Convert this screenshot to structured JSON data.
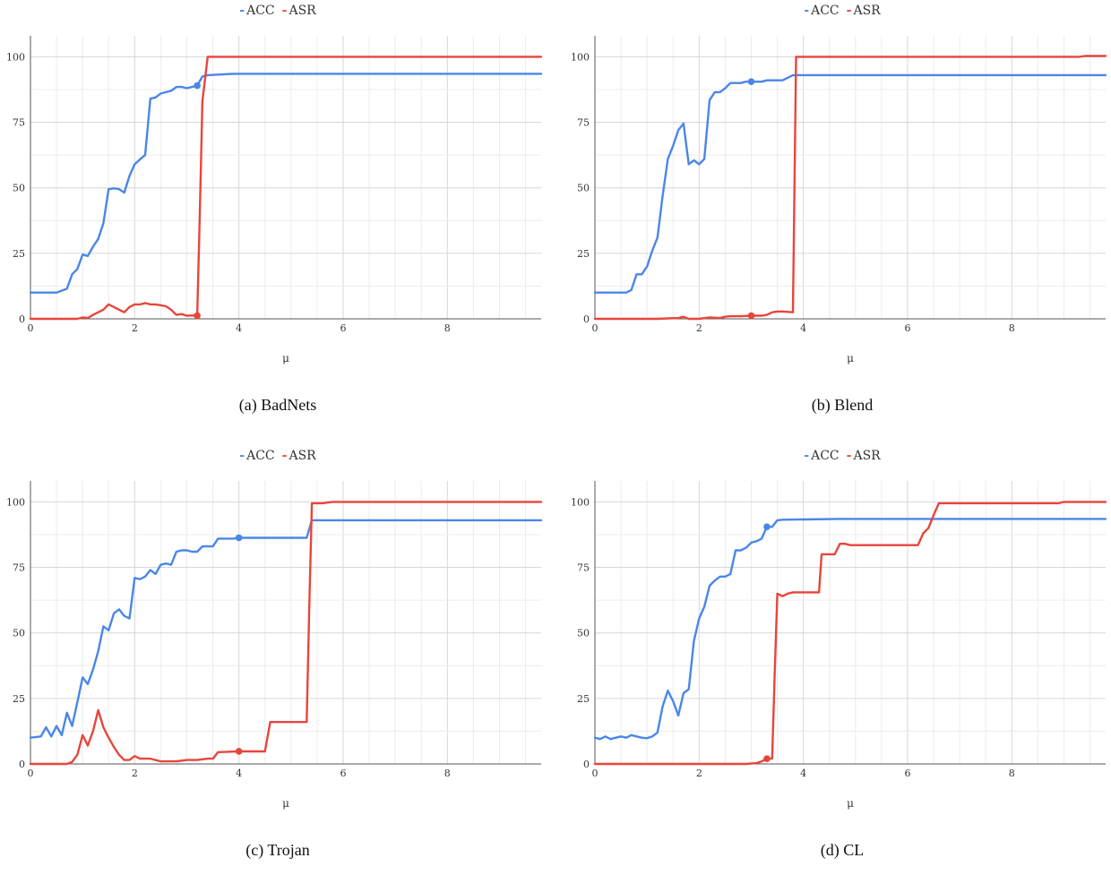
{
  "chart_data": [
    {
      "type": "line",
      "caption": "(a) BadNets",
      "xlabel": "μ",
      "ylabel": "",
      "xlim": [
        0,
        9.8
      ],
      "ylim": [
        0,
        108
      ],
      "xticks": [
        0,
        2,
        4,
        6,
        8
      ],
      "xtick_labels": [
        "0",
        "2",
        "4",
        "6",
        "8"
      ],
      "yticks": [
        0,
        25,
        50,
        75,
        100
      ],
      "ytick_labels": [
        "0",
        "25",
        "50",
        "75",
        "100"
      ],
      "legend": "top-center",
      "grid": true,
      "series": [
        {
          "name": "ACC",
          "color": "#4a86e8",
          "marker": [
            3.2,
            89
          ],
          "x": [
            0,
            0.5,
            0.7,
            0.8,
            0.9,
            1.0,
            1.1,
            1.2,
            1.3,
            1.4,
            1.5,
            1.6,
            1.7,
            1.8,
            1.9,
            2.0,
            2.1,
            2.2,
            2.3,
            2.4,
            2.5,
            2.6,
            2.7,
            2.8,
            2.9,
            3.0,
            3.1,
            3.2,
            3.3,
            3.4,
            3.9,
            9.8
          ],
          "y": [
            10,
            10,
            11.5,
            17,
            19,
            24.5,
            24,
            27.5,
            30.5,
            36.5,
            49.5,
            49.8,
            49.5,
            48.2,
            54.5,
            59,
            60.8,
            62.5,
            84,
            84.5,
            86,
            86.5,
            87,
            88.5,
            88.5,
            88,
            88.5,
            89,
            92.5,
            93,
            93.5,
            93.5
          ]
        },
        {
          "name": "ASR",
          "color": "#e8453c",
          "marker": [
            3.2,
            1.2
          ],
          "x": [
            0,
            0.8,
            0.9,
            1.0,
            1.1,
            1.2,
            1.3,
            1.4,
            1.5,
            1.6,
            1.7,
            1.8,
            1.9,
            2.0,
            2.1,
            2.2,
            2.3,
            2.4,
            2.5,
            2.6,
            2.7,
            2.8,
            2.9,
            3.0,
            3.1,
            3.2,
            3.25,
            3.3,
            3.4,
            3.5,
            9.8
          ],
          "y": [
            0,
            0,
            0,
            0.5,
            0.3,
            1.5,
            2.5,
            3.5,
            5.5,
            4.5,
            3.5,
            2.5,
            4.5,
            5.5,
            5.5,
            6,
            5.5,
            5.5,
            5.2,
            4.8,
            3.5,
            1.5,
            1.8,
            1.2,
            1.3,
            1.2,
            40,
            83,
            100,
            100,
            100
          ]
        }
      ]
    },
    {
      "type": "line",
      "caption": "(b) Blend",
      "xlabel": "μ",
      "ylabel": "",
      "xlim": [
        0,
        9.8
      ],
      "ylim": [
        0,
        108
      ],
      "xticks": [
        0,
        2,
        4,
        6,
        8
      ],
      "xtick_labels": [
        "0",
        "2",
        "4",
        "6",
        "8"
      ],
      "yticks": [
        0,
        25,
        50,
        75,
        100
      ],
      "ytick_labels": [
        "0",
        "25",
        "50",
        "75",
        "100"
      ],
      "legend": "top-center",
      "grid": true,
      "series": [
        {
          "name": "ACC",
          "color": "#4a86e8",
          "marker": [
            3.0,
            90.5
          ],
          "x": [
            0,
            0.6,
            0.7,
            0.8,
            0.9,
            1.0,
            1.1,
            1.2,
            1.3,
            1.4,
            1.5,
            1.6,
            1.7,
            1.8,
            1.9,
            2.0,
            2.1,
            2.2,
            2.3,
            2.4,
            2.5,
            2.6,
            2.7,
            2.8,
            2.9,
            3.0,
            3.1,
            3.2,
            3.3,
            3.4,
            3.5,
            3.6,
            3.7,
            3.8,
            3.9,
            9.8
          ],
          "y": [
            10,
            10,
            11,
            17,
            17,
            20,
            26,
            31,
            47,
            61,
            66,
            72,
            74.5,
            59,
            60.5,
            59,
            61,
            83.5,
            86.5,
            86.5,
            88,
            90,
            90,
            90,
            90.5,
            90.5,
            90.5,
            90.5,
            91,
            91,
            91,
            91,
            92,
            93,
            93,
            93
          ]
        },
        {
          "name": "ASR",
          "color": "#e8453c",
          "marker": [
            3.0,
            1.2
          ],
          "x": [
            0,
            1.2,
            1.6,
            1.7,
            1.8,
            2.0,
            2.2,
            2.4,
            2.5,
            2.6,
            2.8,
            3.0,
            3.2,
            3.3,
            3.4,
            3.5,
            3.6,
            3.8,
            3.86,
            3.9,
            9.3,
            9.4,
            9.8
          ],
          "y": [
            0,
            0,
            0.3,
            0.8,
            0,
            0,
            0.5,
            0.3,
            0.8,
            1,
            1,
            1.2,
            1.2,
            1.5,
            2.5,
            2.8,
            2.8,
            2.5,
            100,
            100,
            100,
            100.3,
            100.3
          ]
        }
      ]
    },
    {
      "type": "line",
      "caption": "(c) Trojan",
      "xlabel": "μ",
      "ylabel": "",
      "xlim": [
        0,
        9.8
      ],
      "ylim": [
        0,
        108
      ],
      "xticks": [
        0,
        2,
        4,
        6,
        8
      ],
      "xtick_labels": [
        "0",
        "2",
        "4",
        "6",
        "8"
      ],
      "yticks": [
        0,
        25,
        50,
        75,
        100
      ],
      "ytick_labels": [
        "0",
        "25",
        "50",
        "75",
        "100"
      ],
      "legend": "top-center",
      "grid": true,
      "series": [
        {
          "name": "ACC",
          "color": "#4a86e8",
          "marker": [
            4.0,
            86.3
          ],
          "x": [
            0,
            0.2,
            0.3,
            0.4,
            0.5,
            0.6,
            0.7,
            0.8,
            0.9,
            1.0,
            1.1,
            1.2,
            1.3,
            1.4,
            1.5,
            1.6,
            1.7,
            1.8,
            1.9,
            2.0,
            2.1,
            2.2,
            2.3,
            2.4,
            2.5,
            2.6,
            2.7,
            2.8,
            2.9,
            3.0,
            3.1,
            3.2,
            3.3,
            3.4,
            3.5,
            3.6,
            3.7,
            3.8,
            3.9,
            4.0,
            4.5,
            5.0,
            5.3,
            5.4,
            5.5,
            9.8
          ],
          "y": [
            10,
            10.5,
            14,
            10.5,
            14.5,
            11,
            19.5,
            14.5,
            23.5,
            33,
            30.5,
            36,
            43,
            52.5,
            51,
            57.5,
            59,
            56.5,
            55.5,
            71,
            70.5,
            71.5,
            74,
            72.5,
            76,
            76.5,
            76,
            81,
            81.5,
            81.5,
            81,
            81,
            83,
            83,
            83,
            86,
            86,
            86,
            86,
            86.3,
            86.3,
            86.3,
            86.3,
            93,
            93,
            93
          ]
        },
        {
          "name": "ASR",
          "color": "#e8453c",
          "marker": [
            4.0,
            4.8
          ],
          "x": [
            0,
            0.7,
            0.8,
            0.9,
            1.0,
            1.1,
            1.2,
            1.3,
            1.4,
            1.5,
            1.6,
            1.7,
            1.8,
            1.9,
            2.0,
            2.1,
            2.2,
            2.3,
            2.4,
            2.5,
            2.6,
            2.8,
            3.0,
            3.2,
            3.4,
            3.5,
            3.6,
            4.0,
            4.5,
            4.6,
            5.3,
            5.35,
            5.4,
            5.6,
            5.8,
            9.8
          ],
          "y": [
            0,
            0,
            0.8,
            3.5,
            11,
            7,
            12.5,
            20.5,
            14,
            10,
            6.5,
            3.5,
            1.5,
            1.5,
            3,
            2,
            2,
            2,
            1.5,
            1,
            1,
            1,
            1.5,
            1.5,
            2,
            2,
            4.5,
            4.8,
            4.8,
            16,
            16,
            60,
            99.5,
            99.5,
            100,
            100
          ]
        }
      ]
    },
    {
      "type": "line",
      "caption": "(d) CL",
      "xlabel": "μ",
      "ylabel": "",
      "xlim": [
        0,
        9.8
      ],
      "ylim": [
        0,
        108
      ],
      "xticks": [
        0,
        2,
        4,
        6,
        8
      ],
      "xtick_labels": [
        "0",
        "2",
        "4",
        "6",
        "8"
      ],
      "yticks": [
        0,
        25,
        50,
        75,
        100
      ],
      "ytick_labels": [
        "0",
        "25",
        "50",
        "75",
        "100"
      ],
      "legend": "top-center",
      "grid": true,
      "series": [
        {
          "name": "ACC",
          "color": "#4a86e8",
          "marker": [
            3.3,
            90.5
          ],
          "x": [
            0,
            0.1,
            0.2,
            0.3,
            0.4,
            0.5,
            0.6,
            0.7,
            0.8,
            0.9,
            1.0,
            1.1,
            1.2,
            1.3,
            1.4,
            1.5,
            1.6,
            1.7,
            1.8,
            1.9,
            2.0,
            2.1,
            2.2,
            2.3,
            2.4,
            2.5,
            2.6,
            2.7,
            2.8,
            2.9,
            3.0,
            3.1,
            3.2,
            3.3,
            3.4,
            3.5,
            3.6,
            4.0,
            4.7,
            9.8
          ],
          "y": [
            10,
            9.5,
            10.5,
            9.5,
            10,
            10.5,
            10,
            11,
            10.5,
            10,
            9.8,
            10.5,
            12,
            22,
            28,
            24,
            18.5,
            27,
            28.5,
            47,
            55.5,
            60,
            68,
            70,
            71.5,
            71.5,
            72.5,
            81.5,
            81.5,
            82.5,
            84.5,
            85,
            86,
            90.5,
            90.5,
            93,
            93.2,
            93.3,
            93.5,
            93.5
          ]
        },
        {
          "name": "ASR",
          "color": "#e8453c",
          "marker": [
            3.3,
            2
          ],
          "x": [
            0,
            2.9,
            3.1,
            3.2,
            3.3,
            3.4,
            3.45,
            3.5,
            3.6,
            3.7,
            3.8,
            4.3,
            4.35,
            4.5,
            4.6,
            4.7,
            4.8,
            4.9,
            6.2,
            6.3,
            6.4,
            6.5,
            6.6,
            6.7,
            8.9,
            9.0,
            9.8
          ],
          "y": [
            0,
            0,
            0.3,
            1,
            2,
            2,
            35,
            65,
            64,
            65,
            65.5,
            65.5,
            80,
            80,
            80,
            84,
            84,
            83.5,
            83.5,
            88,
            90,
            95,
            99.5,
            99.5,
            99.5,
            100,
            100
          ]
        }
      ]
    }
  ]
}
